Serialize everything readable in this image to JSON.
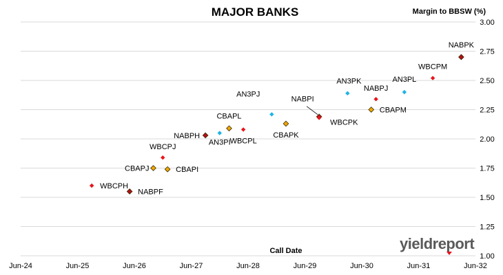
{
  "chart_data": {
    "type": "scatter",
    "title": "MAJOR BANKS",
    "xlabel": "Call Date",
    "ylabel": "Margin to BBSW (%)",
    "x_ticks": [
      "Jun-24",
      "Jun-25",
      "Jun-26",
      "Jun-27",
      "Jun-28",
      "Jun-29",
      "Jun-30",
      "Jun-31",
      "Jun-32"
    ],
    "ylim": [
      1.0,
      3.0
    ],
    "y_ticks": [
      "1.00",
      "1.25",
      "1.50",
      "1.75",
      "2.00",
      "2.25",
      "2.50",
      "2.75",
      "3.00"
    ],
    "grid": "horizontal",
    "colors": {
      "red": "#e8141c",
      "darkred": "#b01018",
      "gold": "#f0a800",
      "cyan": "#1eb4e6",
      "grid": "#d9d9d9"
    },
    "points": [
      {
        "label": "WBCPH",
        "x": "2025-09",
        "y": 1.6,
        "color": "red",
        "shape": "diamond"
      },
      {
        "label": "NABPF",
        "x": "2026-05",
        "y": 1.55,
        "color": "darkred",
        "shape": "diamond"
      },
      {
        "label": "CBAPJ",
        "x": "2026-10",
        "y": 1.75,
        "color": "gold",
        "shape": "diamond"
      },
      {
        "label": "CBAPI",
        "x": "2027-01",
        "y": 1.74,
        "color": "gold",
        "shape": "diamond"
      },
      {
        "label": "WBCPJ",
        "x": "2026-12",
        "y": 1.84,
        "color": "red",
        "shape": "diamond"
      },
      {
        "label": "NABPH",
        "x": "2027-09",
        "y": 2.03,
        "color": "darkred",
        "shape": "diamond"
      },
      {
        "label": "AN3PI",
        "x": "2027-12",
        "y": 2.05,
        "color": "cyan",
        "shape": "diamond"
      },
      {
        "label": "CBAPL",
        "x": "2028-02",
        "y": 2.09,
        "color": "gold",
        "shape": "diamond"
      },
      {
        "label": "WBCPL",
        "x": "2028-05",
        "y": 2.08,
        "color": "red",
        "shape": "diamond"
      },
      {
        "label": "AN3PJ",
        "x": "2028-11",
        "y": 2.21,
        "color": "cyan",
        "shape": "diamond"
      },
      {
        "label": "CBAPK",
        "x": "2029-02",
        "y": 2.13,
        "color": "gold",
        "shape": "diamond"
      },
      {
        "label": "NABPI",
        "x": "2029-09",
        "y": 2.19,
        "color": "darkred",
        "shape": "diamond"
      },
      {
        "label": "WBCPK",
        "x": "2029-09",
        "y": 2.18,
        "color": "red",
        "shape": "diamond"
      },
      {
        "label": "AN3PK",
        "x": "2030-03",
        "y": 2.39,
        "color": "cyan",
        "shape": "diamond"
      },
      {
        "label": "CBAPM",
        "x": "2030-08",
        "y": 2.25,
        "color": "gold",
        "shape": "diamond"
      },
      {
        "label": "NABPJ",
        "x": "2030-09",
        "y": 2.34,
        "color": "red",
        "shape": "diamond"
      },
      {
        "label": "AN3PL",
        "x": "2031-03",
        "y": 2.4,
        "color": "cyan",
        "shape": "diamond"
      },
      {
        "label": "WBCPM",
        "x": "2031-09",
        "y": 2.52,
        "color": "red",
        "shape": "diamond"
      },
      {
        "label": "NABPK",
        "x": "2032-03",
        "y": 2.7,
        "color": "darkred",
        "shape": "diamond"
      }
    ]
  },
  "branding": {
    "logo_text": "yieldreport"
  }
}
